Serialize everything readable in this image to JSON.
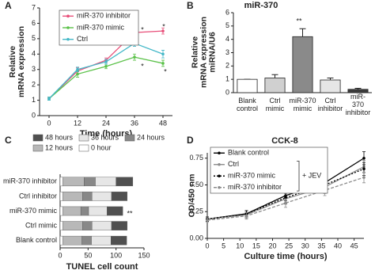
{
  "chart_data": [
    {
      "type": "line",
      "panel": "A",
      "xlabel": "Time (hours)",
      "ylabel": "Relative\nmRNA expression",
      "x": [
        0,
        12,
        24,
        36,
        48
      ],
      "xlim": [
        -4,
        52
      ],
      "xticks": [
        0,
        12,
        24,
        36,
        48
      ],
      "ylim": [
        0,
        7
      ],
      "yticks": [
        0,
        1,
        2,
        3,
        4,
        5,
        6,
        7
      ],
      "legend": "upper left",
      "annotations": [
        "*",
        "*",
        "*",
        "*"
      ],
      "series": [
        {
          "name": "miR-370 inhibitor",
          "color": "#e8507a",
          "dash": "none",
          "values": [
            1.1,
            2.9,
            3.6,
            5.4,
            5.5
          ],
          "errors": [
            0.1,
            0.2,
            0.15,
            0.25,
            0.2
          ]
        },
        {
          "name": "miR-370 mimic",
          "color": "#5cc24a",
          "dash": "none",
          "values": [
            1.1,
            2.7,
            3.2,
            3.8,
            3.4
          ],
          "errors": [
            0.1,
            0.2,
            0.15,
            0.2,
            0.2
          ]
        },
        {
          "name": "Ctrl",
          "color": "#44b8c8",
          "dash": "none",
          "values": [
            1.1,
            3.0,
            3.5,
            4.7,
            4.0
          ],
          "errors": [
            0.1,
            0.15,
            0.15,
            0.2,
            0.25
          ]
        }
      ]
    },
    {
      "type": "bar",
      "panel": "B",
      "title": "miR-370",
      "ylabel": "Relative\nmRNA expression\nmiRNA/U6",
      "categories": [
        "Blank\ncontrol",
        "Ctrl\nmimic",
        "miR-370\nmimic",
        "Ctrl\ninhibitor",
        "miR-370\ninhibitor"
      ],
      "values": [
        1.0,
        1.1,
        4.2,
        0.95,
        0.25
      ],
      "errors": [
        0,
        0.25,
        0.6,
        0.15,
        0.08
      ],
      "colors": [
        "#ffffff",
        "#d0d0d0",
        "#8a8a8a",
        "#e6e6e6",
        "#3c3c3c"
      ],
      "ylim": [
        0,
        6
      ],
      "yticks": [
        0,
        1,
        2,
        3,
        4,
        5,
        6
      ],
      "annotations": [
        "**"
      ]
    },
    {
      "type": "hbar-stacked",
      "panel": "C",
      "xlabel": "TUNEL cell count",
      "categories": [
        "miR-370 inhibitor",
        "Ctrl inhibitor",
        "miR-370 mimic",
        "Ctrl mimic",
        "Blank control"
      ],
      "xlim": [
        0,
        150
      ],
      "xticks": [
        0,
        50,
        100,
        150
      ],
      "legend": "top",
      "annotations": [
        "**"
      ],
      "series": [
        {
          "name": "0 hour",
          "color": "#ffffff",
          "values": [
            5,
            5,
            5,
            5,
            5
          ]
        },
        {
          "name": "12 hours",
          "color": "#b8b8b8",
          "values": [
            38,
            35,
            32,
            35,
            34
          ]
        },
        {
          "name": "24 hours",
          "color": "#888888",
          "values": [
            20,
            17,
            14,
            17,
            17
          ]
        },
        {
          "name": "36 hours",
          "color": "#e6e6e6",
          "values": [
            37,
            35,
            33,
            35,
            35
          ]
        },
        {
          "name": "48 hours",
          "color": "#505050",
          "values": [
            30,
            28,
            28,
            28,
            28
          ]
        }
      ]
    },
    {
      "type": "line",
      "panel": "D",
      "title": "CCK-8",
      "xlabel": "Culture time (hours)",
      "ylabel": "OD/450 nm",
      "x": [
        0,
        12,
        24,
        36,
        48
      ],
      "xlim": [
        0,
        48
      ],
      "xticks": [
        0,
        5,
        10,
        15,
        20,
        25,
        30,
        35,
        40,
        45
      ],
      "ylim": [
        0,
        0.8
      ],
      "yticks": [
        {
          "value": 0,
          "label": "0.00"
        },
        {
          "value": 0.25,
          "label": "0.25"
        },
        {
          "value": 0.5,
          "label": "0.50"
        },
        {
          "value": 0.75,
          "label": "0.75"
        }
      ],
      "legend": "upper left",
      "legend_note": "+ JEV",
      "series": [
        {
          "name": "Blank control",
          "color": "#000000",
          "dash": "none",
          "values": [
            0.18,
            0.23,
            0.4,
            0.52,
            0.75
          ],
          "errors": [
            0.02,
            0.03,
            0.05,
            0.07,
            0.06
          ]
        },
        {
          "name": "Ctrl",
          "color": "#8c8c8c",
          "dash": "none",
          "values": [
            0.18,
            0.22,
            0.37,
            0.48,
            0.67
          ],
          "errors": [
            0.02,
            0.03,
            0.05,
            0.06,
            0.06
          ]
        },
        {
          "name": "miR-370 mimic",
          "color": "#000000",
          "dash": "2,2",
          "values": [
            0.18,
            0.23,
            0.38,
            0.5,
            0.65
          ],
          "errors": [
            0.02,
            0.03,
            0.05,
            0.06,
            0.06
          ]
        },
        {
          "name": "miR-370 inhibitor",
          "color": "#8c8c8c",
          "dash": "4,2",
          "values": [
            0.17,
            0.21,
            0.33,
            0.45,
            0.57
          ],
          "errors": [
            0.02,
            0.03,
            0.04,
            0.05,
            0.05
          ]
        }
      ]
    }
  ]
}
